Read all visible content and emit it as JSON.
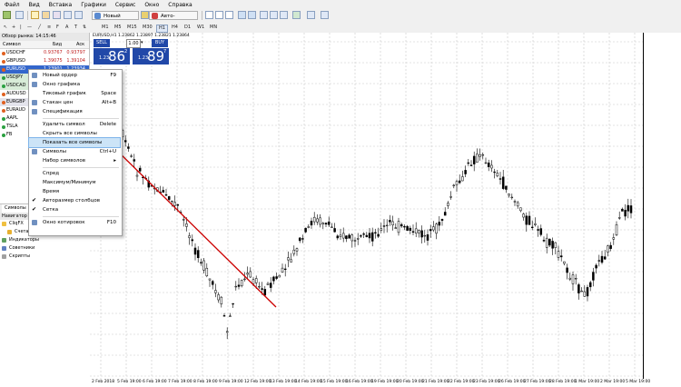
{
  "menu": [
    "Файл",
    "Вид",
    "Вставка",
    "Графики",
    "Сервис",
    "Окно",
    "Справка"
  ],
  "toolbar": {
    "new_order": "Новый ордер",
    "auto_trading": "Авто-торговля"
  },
  "timeframes": [
    "M1",
    "M5",
    "M15",
    "M30",
    "H1",
    "H4",
    "D1",
    "W1",
    "MN"
  ],
  "market_watch": {
    "title": "Обзор рынка: 14:15:46",
    "col_symbol": "Символ",
    "col_bid": "Бид",
    "col_ask": "Аск",
    "rows": [
      {
        "symbol": "USDCHF",
        "bid": "0.93767",
        "ask": "0.93797",
        "color": "#e06020"
      },
      {
        "symbol": "GBPUSD",
        "bid": "1.39075",
        "ask": "1.39104",
        "color": "#e06020"
      },
      {
        "symbol": "EURUSD",
        "bid": "1.23901",
        "ask": "1.23934",
        "color": "#e06020"
      },
      {
        "symbol": "USDJPY",
        "bid": "",
        "ask": "",
        "color": "#2aa040"
      },
      {
        "symbol": "USDCAD",
        "bid": "",
        "ask": "",
        "color": "#2aa040"
      },
      {
        "symbol": "AUDUSD",
        "bid": "",
        "ask": "",
        "color": "#e06020"
      },
      {
        "symbol": "EURGBP",
        "bid": "",
        "ask": "",
        "color": "#e06020"
      },
      {
        "symbol": "EURAUD",
        "bid": "",
        "ask": "",
        "color": "#e06020"
      },
      {
        "symbol": "AAPL",
        "bid": "",
        "ask": "",
        "color": "#2aa040"
      },
      {
        "symbol": "TSLA",
        "bid": "",
        "ask": "",
        "color": "#2aa040"
      },
      {
        "symbol": "FB",
        "bid": "",
        "ask": "",
        "color": "#2aa040"
      }
    ]
  },
  "panel_tab": "Символы",
  "navigator": {
    "title": "Навигатор",
    "items": [
      "CliqFX",
      "Счета",
      "Индикаторы",
      "Советники",
      "Скрипты"
    ]
  },
  "chart": {
    "header": "EURUSD,H1  1.23862 1.23897 1.23821 1.23864",
    "one_click": {
      "sell": "SELL",
      "buy": "BUY",
      "volume": "1.00",
      "sell_price_small": "1.23",
      "sell_price_big": "86",
      "sell_sup": "2",
      "buy_price_small": "1.23",
      "buy_price_big": "89",
      "buy_sup": "7"
    },
    "time_labels": [
      "2 Feb 2018",
      "5 Feb 19:00",
      "6 Feb 19:00",
      "7 Feb 19:00",
      "8 Feb 19:00",
      "9 Feb 19:00",
      "12 Feb 19:00",
      "13 Feb 19:00",
      "14 Feb 19:00",
      "15 Feb 19:00",
      "16 Feb 19:00",
      "19 Feb 19:00",
      "20 Feb 19:00",
      "21 Feb 19:00",
      "22 Feb 19:00",
      "23 Feb 19:00",
      "26 Feb 19:00",
      "27 Feb 19:00",
      "28 Feb 19:00",
      "1 Mar 19:00",
      "2 Mar 19:00",
      "5 Mar 19:00"
    ]
  },
  "context_menu": [
    {
      "label": "Новый ордер",
      "shortcut": "F9",
      "icon": "new-order-icon"
    },
    {
      "label": "Окно графика",
      "shortcut": "",
      "icon": "chart-window-icon"
    },
    {
      "label": "Тиковый график",
      "shortcut": "Space",
      "icon": ""
    },
    {
      "label": "Стакан цен",
      "shortcut": "Alt+B",
      "icon": "depth-icon"
    },
    {
      "label": "Спецификация",
      "shortcut": "",
      "icon": "spec-icon"
    },
    {
      "sep": true
    },
    {
      "label": "Удалить символ",
      "shortcut": "Delete",
      "icon": ""
    },
    {
      "label": "Скрыть все символы",
      "shortcut": "",
      "icon": ""
    },
    {
      "label": "Показать все символы",
      "shortcut": "",
      "icon": "",
      "highlight": true
    },
    {
      "label": "Символы",
      "shortcut": "Ctrl+U",
      "icon": "symbols-icon"
    },
    {
      "label": "Набор символов",
      "shortcut": "",
      "icon": "",
      "arrow": true
    },
    {
      "sep": true
    },
    {
      "label": "Спред",
      "shortcut": "",
      "icon": ""
    },
    {
      "label": "Максимум/Минимум",
      "shortcut": "",
      "icon": ""
    },
    {
      "label": "Время",
      "shortcut": "",
      "icon": ""
    },
    {
      "label": "Авторазмер столбцов",
      "shortcut": "",
      "icon": "",
      "check": true
    },
    {
      "label": "Сетка",
      "shortcut": "",
      "icon": "",
      "check": true
    },
    {
      "sep": true
    },
    {
      "label": "Окно котировок",
      "shortcut": "F10",
      "icon": "quotes-icon"
    }
  ],
  "colors": {
    "selected_row": "#3366cc",
    "sell_bg": "#2148a8",
    "buy_bg": "#2148a8",
    "trend_line": "#cc0000",
    "candle": "#000000"
  }
}
